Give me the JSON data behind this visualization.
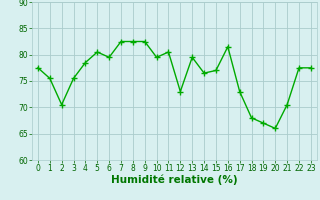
{
  "x": [
    0,
    1,
    2,
    3,
    4,
    5,
    6,
    7,
    8,
    9,
    10,
    11,
    12,
    13,
    14,
    15,
    16,
    17,
    18,
    19,
    20,
    21,
    22,
    23
  ],
  "y": [
    77.5,
    75.5,
    70.5,
    75.5,
    78.5,
    80.5,
    79.5,
    82.5,
    82.5,
    82.5,
    79.5,
    80.5,
    73.0,
    79.5,
    76.5,
    77.0,
    81.5,
    73.0,
    68.0,
    67.0,
    66.0,
    70.5,
    77.5,
    77.5
  ],
  "line_color": "#00aa00",
  "marker": "+",
  "markersize": 4,
  "linewidth": 1.0,
  "xlabel": "Humidité relative (%)",
  "xlabel_color": "#007700",
  "xlabel_fontsize": 7.5,
  "xlabel_bold": true,
  "ylim": [
    60,
    90
  ],
  "yticks": [
    60,
    65,
    70,
    75,
    80,
    85,
    90
  ],
  "ytick_labels": [
    "60",
    "65",
    "70",
    "75",
    "80",
    "85",
    "90"
  ],
  "xtick_labels": [
    "0",
    "1",
    "2",
    "3",
    "4",
    "5",
    "6",
    "7",
    "8",
    "9",
    "10",
    "11",
    "12",
    "13",
    "14",
    "15",
    "16",
    "17",
    "18",
    "19",
    "20",
    "21",
    "22",
    "23"
  ],
  "background_color": "#d8f0f0",
  "grid_color": "#aacccc",
  "tick_fontsize": 5.5,
  "tick_color": "#006600"
}
